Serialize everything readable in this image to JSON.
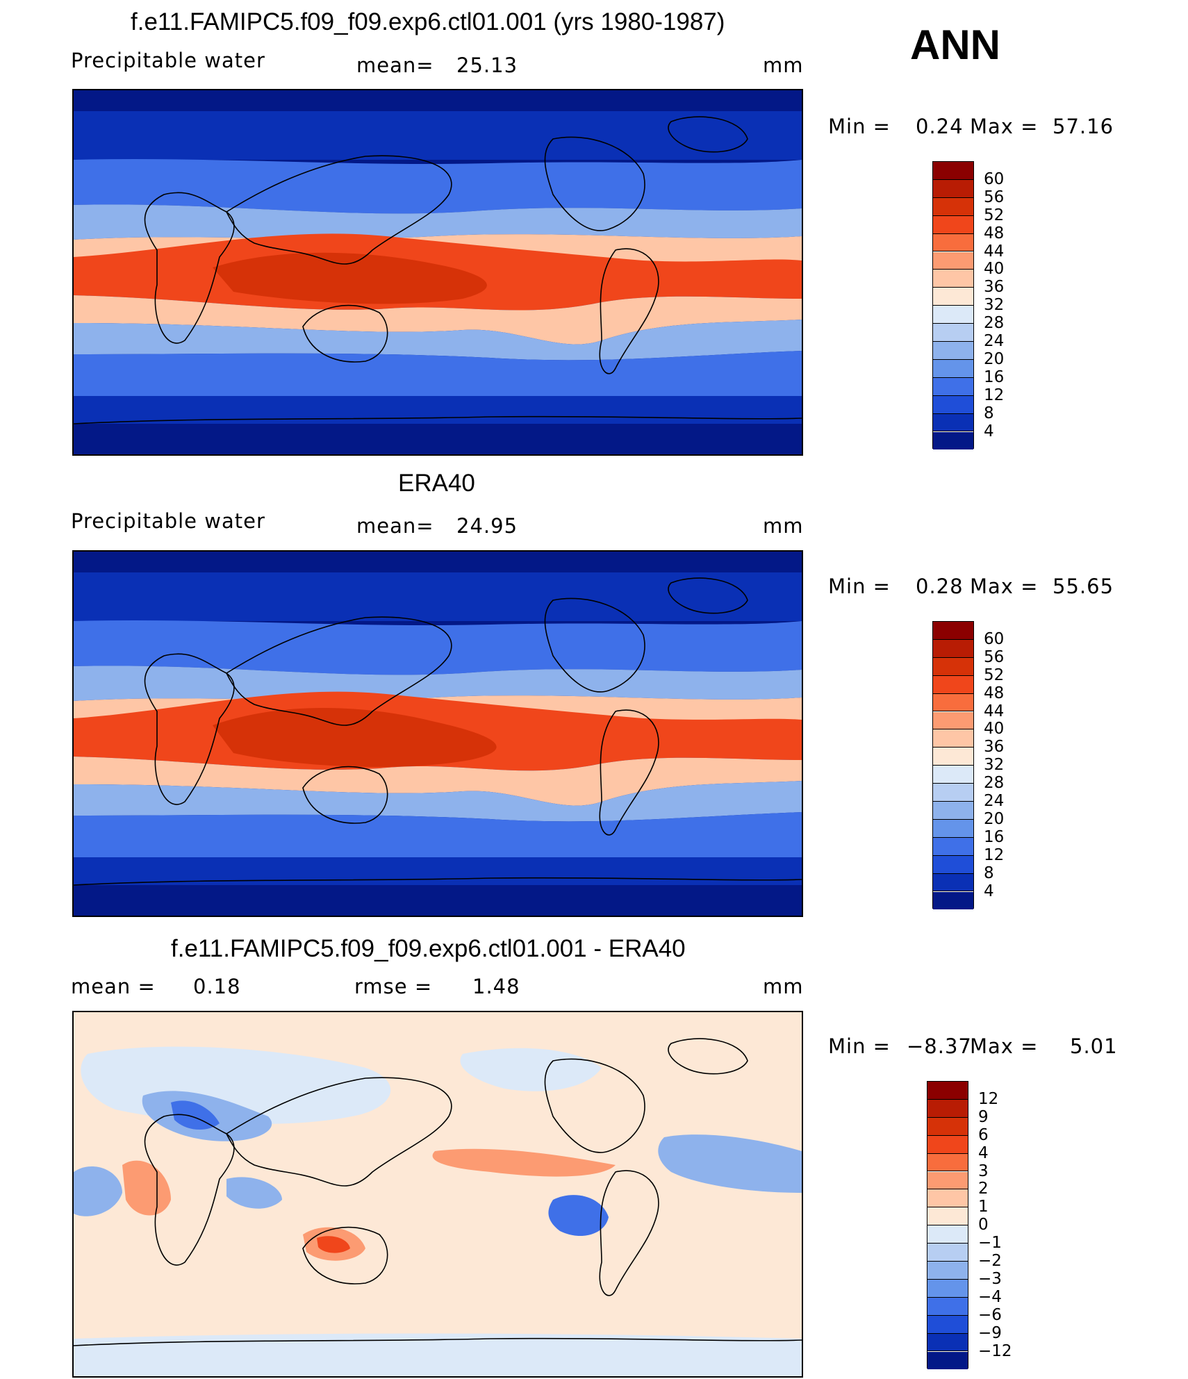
{
  "season": "ANN",
  "panels": [
    {
      "id": "model",
      "title": "f.e11.FAMIPC5.f09_f09.exp6.ctl01.001 (yrs 1980-1987)",
      "left_label": "Precipitable  water",
      "mid_label": "mean=",
      "mid_value": "25.13",
      "units": "mm",
      "min_label": "Min  =",
      "min_value": "0.24",
      "max_label": "Max  =",
      "max_value": "57.16",
      "type": "field"
    },
    {
      "id": "obs",
      "title": "ERA40",
      "left_label": "Precipitable  water",
      "mid_label": "mean=",
      "mid_value": "24.95",
      "units": "mm",
      "min_label": "Min  =",
      "min_value": "0.28",
      "max_label": "Max  =",
      "max_value": "55.65",
      "type": "field"
    },
    {
      "id": "diff",
      "title": "f.e11.FAMIPC5.f09_f09.exp6.ctl01.001 - ERA40",
      "left_label": "mean =",
      "left_value": "0.18",
      "mid_label": "rmse =",
      "mid_value": "1.48",
      "units": "mm",
      "min_label": "Min  =",
      "min_value": "−8.37",
      "max_label": "Max  =",
      "max_value": "5.01",
      "type": "diff"
    }
  ],
  "colorbars": {
    "field": {
      "levels": [
        "60",
        "56",
        "52",
        "48",
        "44",
        "40",
        "36",
        "32",
        "28",
        "24",
        "20",
        "16",
        "12",
        "8",
        "4"
      ],
      "colors": [
        "#8b0000",
        "#b81c04",
        "#d63208",
        "#f0461b",
        "#f86d3d",
        "#fc9b72",
        "#fec6a6",
        "#fde8d6",
        "#dce9f8",
        "#b7cef2",
        "#8eb2ec",
        "#6494ea",
        "#3f70e8",
        "#1f4ed8",
        "#0a30b5",
        "#031887"
      ]
    },
    "diff": {
      "levels": [
        "12",
        "9",
        "6",
        "4",
        "3",
        "2",
        "1",
        "0",
        "−1",
        "−2",
        "−3",
        "−4",
        "−6",
        "−9",
        "−12"
      ],
      "colors": [
        "#8b0000",
        "#b81c04",
        "#d63208",
        "#f0461b",
        "#f86d3d",
        "#fc9b72",
        "#fec6a6",
        "#fde8d6",
        "#dce9f8",
        "#b7cef2",
        "#8eb2ec",
        "#6494ea",
        "#3f70e8",
        "#1f4ed8",
        "#0a30b5",
        "#031887"
      ]
    }
  },
  "map_colors": {
    "polar": "#031887",
    "sub_polar": "#0a30b5",
    "mid_lat": "#3f70e8",
    "sub_trop": "#8eb2ec",
    "trop_edge": "#fec6a6",
    "tropics": "#f0461b",
    "warm_pool": "#d63208",
    "diff_pos_small": "#fde8d6",
    "diff_pos_mid": "#fc9b72",
    "diff_pos_large": "#f0461b",
    "diff_neg_small": "#dce9f8",
    "diff_neg_mid": "#8eb2ec",
    "diff_neg_large": "#3f70e8"
  }
}
